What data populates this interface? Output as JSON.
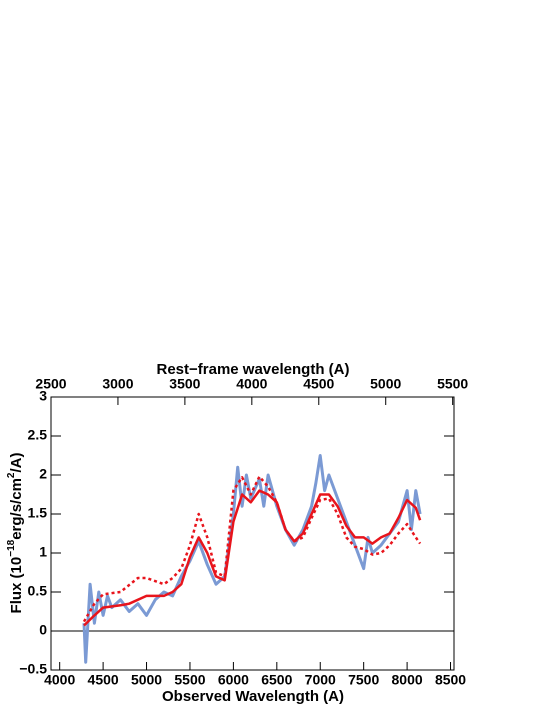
{
  "chart_data": {
    "type": "line",
    "x_label": "Observed Wavelength (A)",
    "x2_label": "Rest−frame wavelength (A)",
    "y_label": [
      "Flux (10",
      "−18",
      "erg/s/cm",
      "2",
      "/A)"
    ],
    "xlim": [
      3900,
      8540
    ],
    "xticks": [
      4000,
      4500,
      5000,
      5500,
      6000,
      6500,
      7000,
      7500,
      8000,
      8500
    ],
    "x2lim": [
      2500,
      5510
    ],
    "x2ticks": [
      2500,
      3000,
      3500,
      4000,
      4500,
      5000,
      5500
    ],
    "ylim": [
      -0.5,
      3
    ],
    "yticks": [
      {
        "value": -0.5,
        "label": "−0.5"
      },
      0,
      0.5,
      1,
      1.5,
      2,
      2.5,
      3
    ],
    "series": [
      {
        "color": "#7b9ad4",
        "x": [
          4280,
          4300,
          4350,
          4400,
          4450,
          4500,
          4550,
          4600,
          4700,
          4800,
          4900,
          5000,
          5100,
          5200,
          5300,
          5400,
          5500,
          5600,
          5700,
          5800,
          5900,
          6000,
          6050,
          6100,
          6150,
          6200,
          6300,
          6350,
          6400,
          6500,
          6600,
          6700,
          6800,
          6900,
          6950,
          7000,
          7050,
          7100,
          7200,
          7300,
          7400,
          7500,
          7550,
          7600,
          7700,
          7800,
          7900,
          8000,
          8050,
          8100,
          8150
        ],
        "values": [
          0.1,
          -0.4,
          0.6,
          0.1,
          0.5,
          0.2,
          0.45,
          0.3,
          0.4,
          0.25,
          0.35,
          0.2,
          0.4,
          0.5,
          0.45,
          0.7,
          0.9,
          1.15,
          0.85,
          0.6,
          0.7,
          1.5,
          2.1,
          1.6,
          2.0,
          1.7,
          1.95,
          1.6,
          2.0,
          1.6,
          1.3,
          1.1,
          1.3,
          1.6,
          1.9,
          2.25,
          1.8,
          2.0,
          1.7,
          1.4,
          1.1,
          0.8,
          1.2,
          1.0,
          1.1,
          1.25,
          1.4,
          1.8,
          1.3,
          1.8,
          1.5
        ]
      },
      {
        "color": "#e8141c",
        "dash": "3,3",
        "x": [
          4280,
          4400,
          4500,
          4700,
          4900,
          5000,
          5200,
          5300,
          5400,
          5500,
          5600,
          5700,
          5800,
          5900,
          6000,
          6100,
          6200,
          6300,
          6400,
          6500,
          6600,
          6700,
          6800,
          6900,
          7000,
          7100,
          7200,
          7300,
          7400,
          7500,
          7600,
          7700,
          7800,
          7900,
          8000,
          8100,
          8150
        ],
        "values": [
          0.12,
          0.35,
          0.47,
          0.5,
          0.68,
          0.68,
          0.6,
          0.68,
          0.8,
          1.1,
          1.5,
          1.2,
          0.75,
          0.7,
          1.8,
          1.97,
          1.75,
          1.98,
          1.85,
          1.65,
          1.3,
          1.15,
          1.2,
          1.45,
          1.68,
          1.7,
          1.5,
          1.2,
          1.08,
          1.05,
          0.98,
          1.0,
          1.1,
          1.25,
          1.37,
          1.2,
          1.12
        ]
      },
      {
        "color": "#e8141c",
        "x": [
          4280,
          4400,
          4500,
          4700,
          4800,
          5000,
          5200,
          5300,
          5400,
          5500,
          5600,
          5700,
          5800,
          5900,
          6000,
          6100,
          6200,
          6300,
          6400,
          6500,
          6600,
          6700,
          6800,
          6900,
          7000,
          7100,
          7200,
          7300,
          7400,
          7500,
          7600,
          7700,
          7800,
          7900,
          8000,
          8100,
          8150
        ],
        "values": [
          0.07,
          0.2,
          0.3,
          0.33,
          0.35,
          0.45,
          0.45,
          0.5,
          0.6,
          0.95,
          1.2,
          1.0,
          0.7,
          0.65,
          1.4,
          1.75,
          1.65,
          1.8,
          1.75,
          1.65,
          1.3,
          1.15,
          1.25,
          1.5,
          1.75,
          1.75,
          1.6,
          1.35,
          1.2,
          1.2,
          1.12,
          1.2,
          1.25,
          1.45,
          1.68,
          1.58,
          1.42
        ]
      }
    ]
  }
}
